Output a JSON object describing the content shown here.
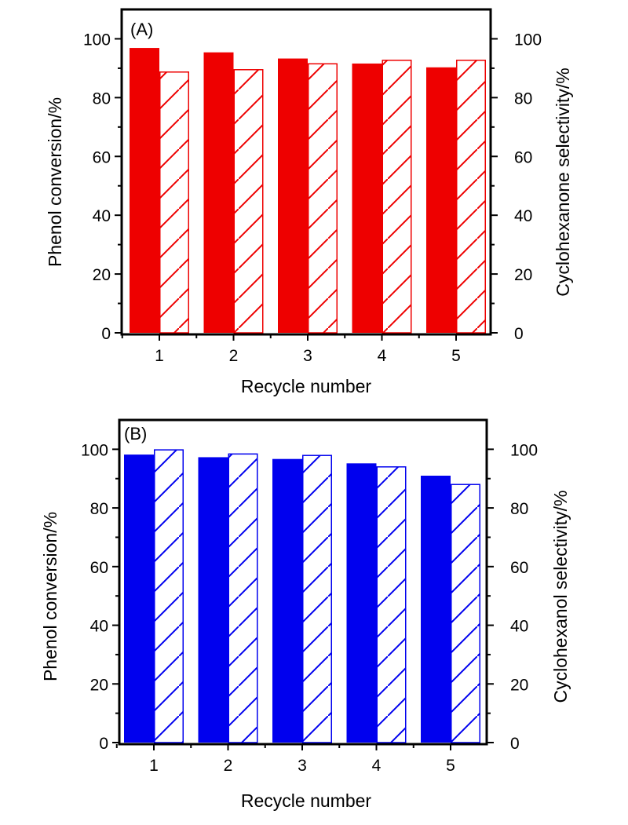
{
  "chart_data": [
    {
      "type": "bar",
      "panel_label": "(A)",
      "categories": [
        "1",
        "2",
        "3",
        "4",
        "5"
      ],
      "xlabel": "Recycle number",
      "ylabel": "Phenol conversion/%",
      "ylabel_right": "Cyclohexanone selectivity/%",
      "ylim": [
        0,
        110
      ],
      "yticks": [
        "0",
        "20",
        "40",
        "60",
        "80",
        "100"
      ],
      "color": "#ee0000",
      "series": [
        {
          "name": "Phenol conversion",
          "style": "solid",
          "axis": "left",
          "values": [
            96.9,
            95.4,
            93.3,
            91.6,
            90.3
          ]
        },
        {
          "name": "Cyclohexanone selectivity",
          "style": "hatched",
          "axis": "right",
          "values": [
            88.7,
            89.5,
            91.5,
            92.7,
            92.7
          ]
        }
      ]
    },
    {
      "type": "bar",
      "panel_label": "(B)",
      "categories": [
        "1",
        "2",
        "3",
        "4",
        "5"
      ],
      "xlabel": "Recycle number",
      "ylabel": "Phenol conversion/%",
      "ylabel_right": "Cyclohexanol selectivity/%",
      "ylim": [
        0,
        110
      ],
      "yticks": [
        "0",
        "20",
        "40",
        "60",
        "80",
        "100"
      ],
      "color": "#0000ee",
      "series": [
        {
          "name": "Phenol conversion",
          "style": "solid",
          "axis": "left",
          "values": [
            98.2,
            97.3,
            96.7,
            95.2,
            91.0
          ]
        },
        {
          "name": "Cyclohexanol selectivity",
          "style": "hatched",
          "axis": "right",
          "values": [
            99.8,
            98.4,
            97.9,
            94.0,
            88.0
          ]
        }
      ]
    }
  ]
}
